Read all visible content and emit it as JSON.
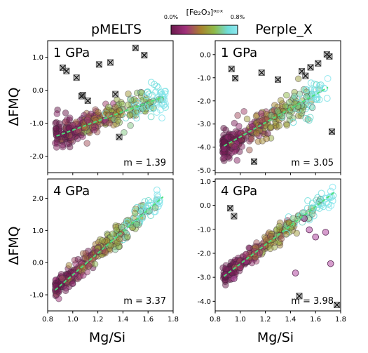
{
  "figure": {
    "col_titles": [
      "pMELTS",
      "Perple_X"
    ],
    "ylabel": "ΔFMQ",
    "xlabel": "Mg/Si",
    "colorbar": {
      "label": "[Fe₂O₃]ᵒᵖˣ",
      "min_label": "0.0%",
      "max_label": "0.8%",
      "range": [
        0.0,
        0.8
      ],
      "colors": [
        "#6a1a4c",
        "#a0307a",
        "#a8822e",
        "#8fba48",
        "#6fdcd8",
        "#8ee8f0"
      ]
    }
  },
  "chart_data": [
    {
      "type": "scatter",
      "model": "pMELTS",
      "panel_label": "1 GPa",
      "xlim": [
        0.8,
        1.8
      ],
      "ylim": [
        -2.5,
        1.5
      ],
      "xticks": [
        "0.8",
        "1.0",
        "1.2",
        "1.4",
        "1.6",
        "1.8"
      ],
      "yticks": [
        "-2.0",
        "-1.0",
        "0.0",
        "1.0"
      ],
      "fit": {
        "slope": 1.39,
        "intercept": -2.6,
        "x_range": [
          0.87,
          1.72
        ],
        "color": "#4de07a"
      },
      "slope_label": "m = 1.39",
      "cloud": {
        "n": 340,
        "x_range": [
          0.86,
          1.74
        ],
        "scatter_sd": 0.22,
        "seed": 11
      },
      "outliers": [
        [
          0.92,
          0.68
        ],
        [
          0.95,
          0.58
        ],
        [
          1.03,
          0.38
        ],
        [
          1.08,
          -0.15
        ],
        [
          1.21,
          0.78
        ],
        [
          1.3,
          0.84
        ],
        [
          1.5,
          1.28
        ],
        [
          1.57,
          1.06
        ],
        [
          1.34,
          -0.12
        ],
        [
          1.37,
          -1.42
        ],
        [
          1.07,
          -0.18
        ],
        [
          1.12,
          -0.32
        ]
      ]
    },
    {
      "type": "scatter",
      "model": "Perple_X",
      "panel_label": "1 GPa",
      "xlim": [
        0.8,
        1.8
      ],
      "ylim": [
        -5.1,
        0.6
      ],
      "xticks": [
        "0.8",
        "1.0",
        "1.2",
        "1.4",
        "1.6",
        "1.8"
      ],
      "yticks": [
        "-5.0",
        "-4.0",
        "-3.0",
        "-2.0",
        "-1.0",
        "0.0"
      ],
      "fit": {
        "slope": 3.05,
        "intercept": -6.6,
        "x_range": [
          0.87,
          1.7
        ],
        "color": "#4de07a"
      },
      "slope_label": "m = 3.05",
      "cloud": {
        "n": 340,
        "x_range": [
          0.86,
          1.7
        ],
        "scatter_sd": 0.32,
        "seed": 23
      },
      "outliers": [
        [
          0.93,
          -0.62
        ],
        [
          0.96,
          -1.02
        ],
        [
          1.17,
          -0.78
        ],
        [
          1.3,
          -1.08
        ],
        [
          1.49,
          -0.72
        ],
        [
          1.52,
          -0.92
        ],
        [
          1.56,
          -0.55
        ],
        [
          1.62,
          -0.38
        ],
        [
          1.69,
          0.01
        ],
        [
          1.71,
          -0.08
        ],
        [
          1.73,
          -3.33
        ],
        [
          1.11,
          -4.62
        ]
      ]
    },
    {
      "type": "scatter",
      "model": "pMELTS",
      "panel_label": "4 GPa",
      "xlim": [
        0.8,
        1.8
      ],
      "ylim": [
        -1.5,
        2.6
      ],
      "xticks": [
        "0.8",
        "1.0",
        "1.2",
        "1.4",
        "1.6",
        "1.8"
      ],
      "yticks": [
        "-1.0",
        "0.0",
        "1.0",
        "2.0"
      ],
      "fit": {
        "slope": 3.37,
        "intercept": -3.75,
        "x_range": [
          0.86,
          1.72
        ],
        "color": "#4de07a"
      },
      "slope_label": "m = 3.37",
      "cloud": {
        "n": 300,
        "x_range": [
          0.86,
          1.7
        ],
        "scatter_sd": 0.18,
        "seed": 37
      },
      "outliers": []
    },
    {
      "type": "scatter",
      "model": "Perple_X",
      "panel_label": "4 GPa",
      "xlim": [
        0.8,
        1.8
      ],
      "ylim": [
        -4.4,
        1.1
      ],
      "xticks": [
        "0.8",
        "1.0",
        "1.2",
        "1.4",
        "1.6",
        "1.8"
      ],
      "yticks": [
        "-4.0",
        "-3.0",
        "-2.0",
        "-1.0",
        "0.0",
        "1.0"
      ],
      "fit": {
        "slope": 3.98,
        "intercept": -6.42,
        "x_range": [
          0.87,
          1.75
        ],
        "color": "#4de07a"
      },
      "slope_label": "m = 3.98",
      "cloud": {
        "n": 300,
        "x_range": [
          0.86,
          1.74
        ],
        "scatter_sd": 0.18,
        "seed": 53
      },
      "outliers": [
        [
          0.92,
          -0.12
        ],
        [
          0.95,
          -0.45
        ],
        [
          1.47,
          -3.78
        ],
        [
          1.77,
          -4.15
        ]
      ],
      "purple_extras": [
        [
          0.95,
          -3.05
        ],
        [
          1.51,
          -0.55
        ],
        [
          1.55,
          -1.02
        ],
        [
          1.6,
          -1.32
        ],
        [
          1.68,
          -1.12
        ],
        [
          1.72,
          -2.43
        ],
        [
          1.44,
          -2.82
        ]
      ]
    }
  ]
}
